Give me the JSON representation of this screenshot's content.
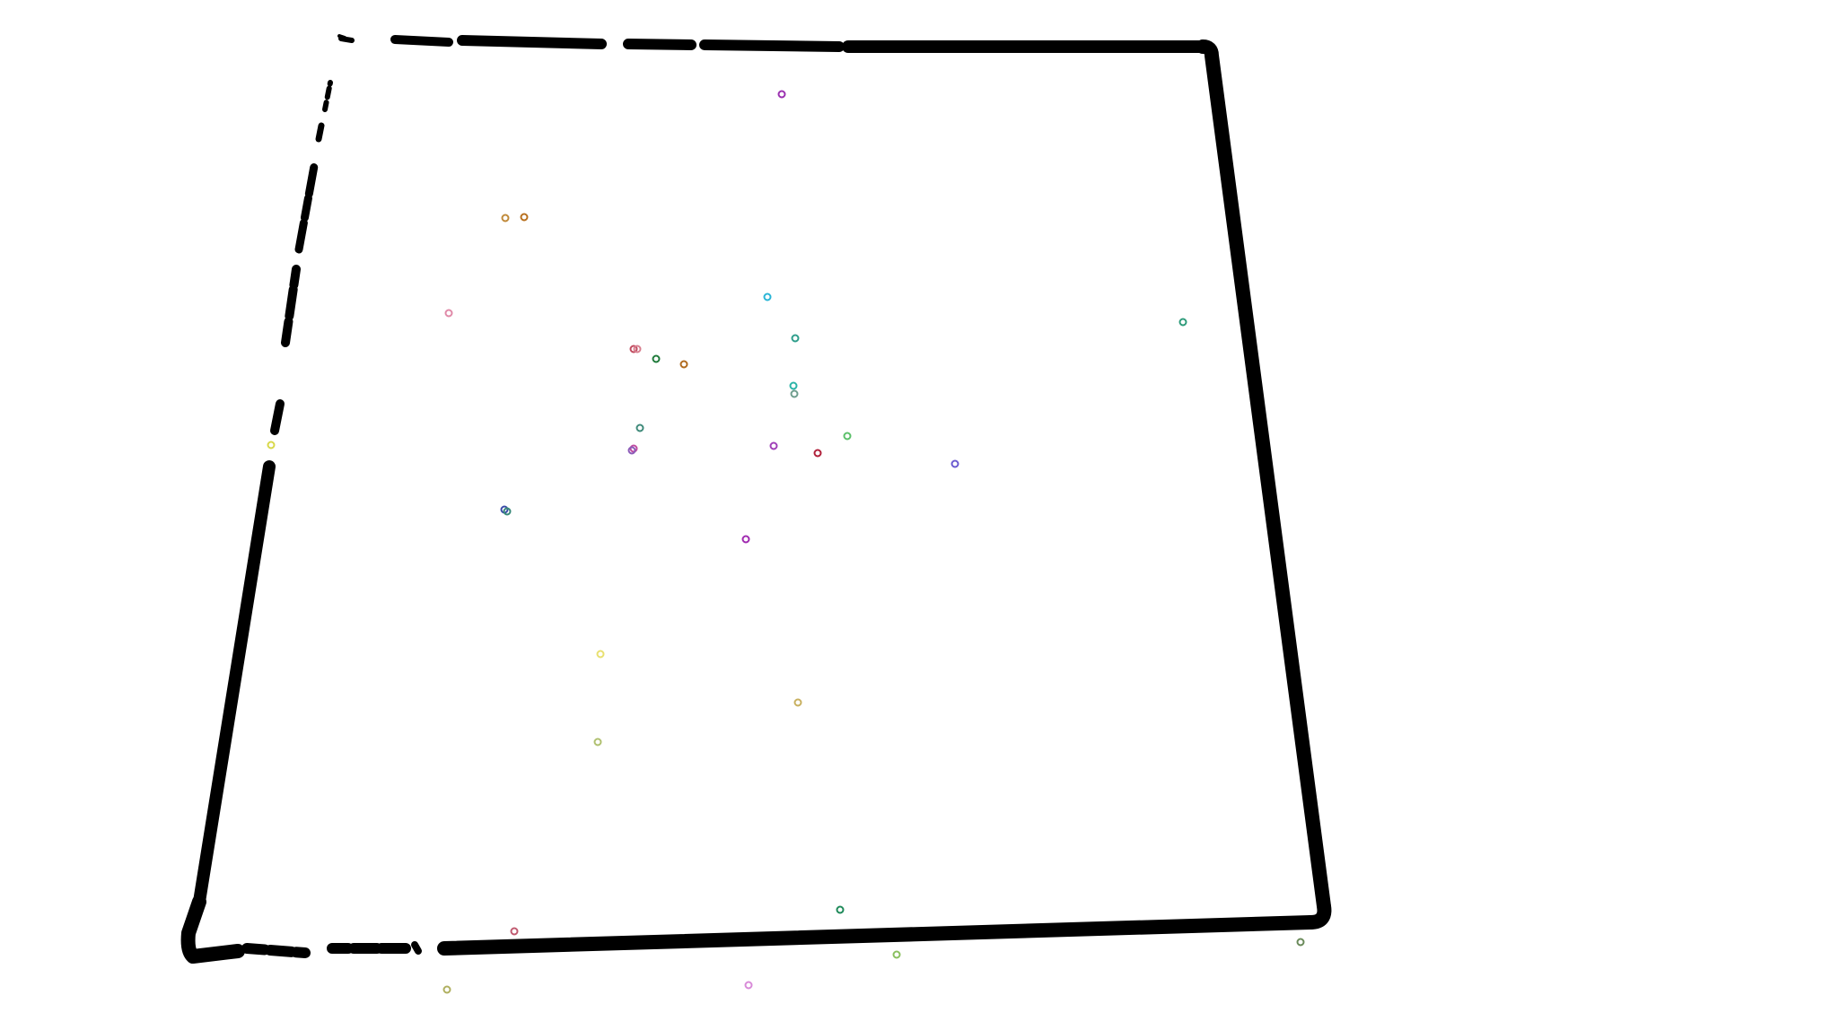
{
  "image": {
    "background": "#ffffff",
    "boundary_color": "#000000",
    "marker_style": "small hollow circles",
    "marker_count": 35
  }
}
